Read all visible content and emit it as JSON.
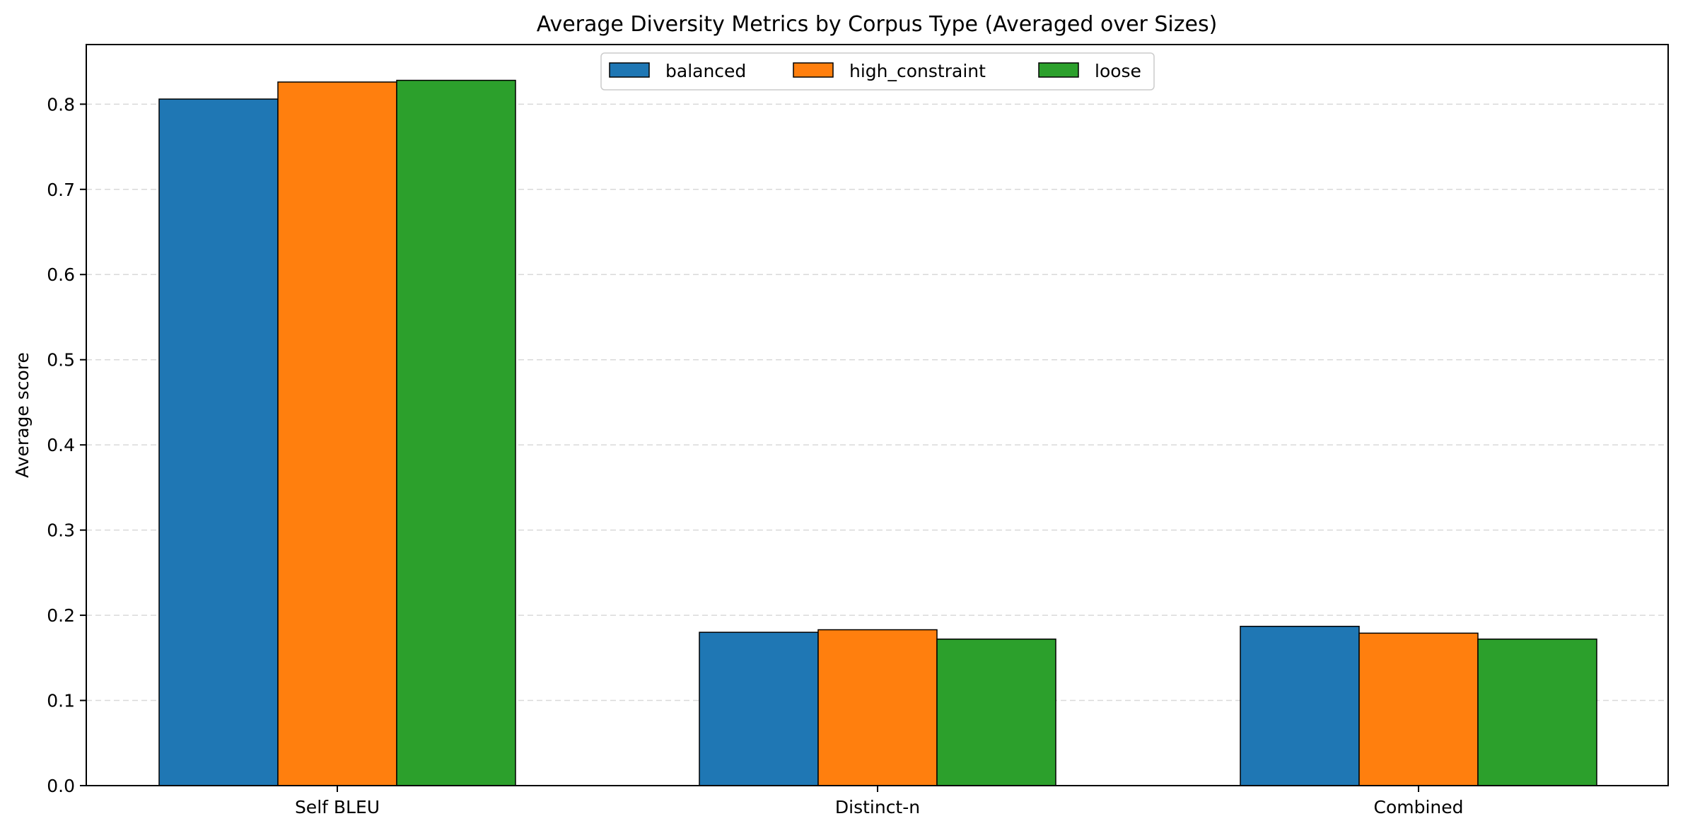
{
  "chart_data": {
    "type": "bar",
    "title": "Average Diversity Metrics by Corpus Type (Averaged over Sizes)",
    "xlabel": "",
    "ylabel": "Average score",
    "categories": [
      "Self BLEU",
      "Distinct-n",
      "Combined"
    ],
    "ylim": [
      0,
      0.87
    ],
    "yticks": [
      "0.0",
      "0.1",
      "0.2",
      "0.3",
      "0.4",
      "0.5",
      "0.6",
      "0.7",
      "0.8"
    ],
    "grid": "y-dashed",
    "legend_position": "top-center",
    "series": [
      {
        "name": "balanced",
        "color": "#1f77b4",
        "values": [
          0.806,
          0.18,
          0.187
        ]
      },
      {
        "name": "high_constraint",
        "color": "#ff7f0e",
        "values": [
          0.826,
          0.183,
          0.179
        ]
      },
      {
        "name": "loose",
        "color": "#2ca02c",
        "values": [
          0.828,
          0.172,
          0.172
        ]
      }
    ]
  }
}
